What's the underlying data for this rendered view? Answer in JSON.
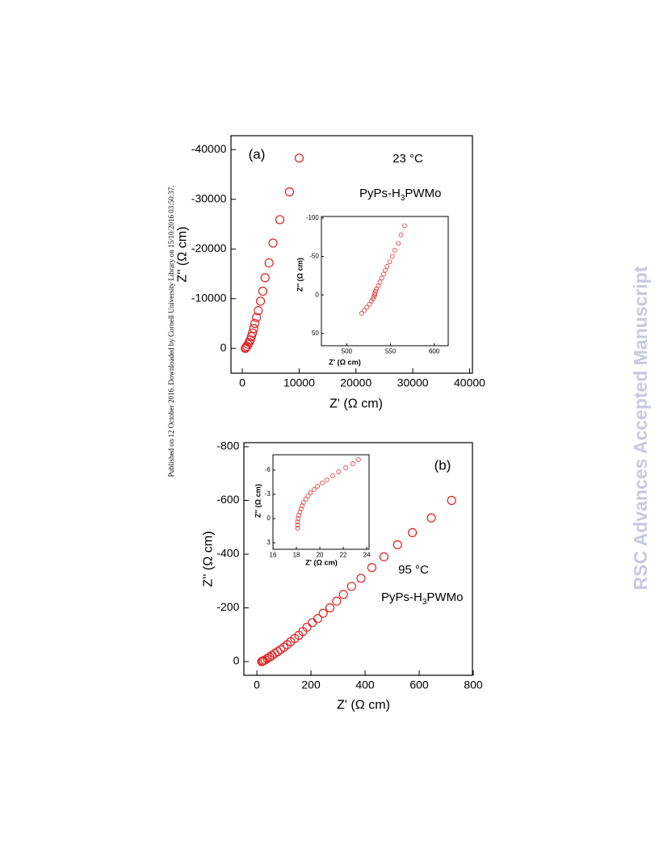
{
  "sidebar": {
    "left": "Published on 12 October 2016. Downloaded by Cornell University Library on 15/10/2016 03:50:37.",
    "right": "RSC Advances Accepted Manuscript"
  },
  "chart_data": [
    {
      "type": "scatter",
      "color": "#e02020",
      "xlabel": "Z' (Ω cm)",
      "ylabel": "Z'' (Ω cm)",
      "annotations": [
        "(a)",
        "23 °C"
      ],
      "label_parts": [
        "PyPs-H",
        "3",
        "PWMo"
      ],
      "xlim": [
        -2000,
        40500
      ],
      "xticks": [
        0,
        10000,
        20000,
        30000,
        40000
      ],
      "ylim": [
        5000,
        -42800
      ],
      "yticks": [
        0,
        -10000,
        -20000,
        -30000,
        -40000
      ],
      "x": [
        10000,
        8300,
        6600,
        5400,
        4700,
        4000,
        3600,
        3200,
        2800,
        2500,
        2200,
        2000,
        1800,
        1600,
        1400,
        1200,
        1000,
        800,
        600,
        530
      ],
      "values": [
        -38300,
        -31500,
        -25900,
        -21200,
        -17200,
        -14200,
        -11500,
        -9500,
        -7600,
        -6200,
        -5000,
        -4000,
        -3100,
        -2400,
        -1700,
        -1200,
        -800,
        -400,
        -150,
        0
      ]
    },
    {
      "type": "scatter",
      "color": "#e02020",
      "xlabel": "Z' (Ω cm)",
      "ylabel": "Z'' (Ω cm)",
      "xlim": [
        471,
        616
      ],
      "xticks": [
        500,
        550,
        600
      ],
      "ylim": [
        66,
        -102
      ],
      "yticks": [
        50,
        0,
        -50,
        -100
      ],
      "x": [
        517,
        520,
        523,
        526,
        528,
        530,
        531,
        532,
        532,
        533,
        534,
        536,
        538,
        540,
        542,
        544,
        546,
        549,
        552,
        555,
        559,
        562,
        566
      ],
      "values": [
        24,
        20,
        16,
        12,
        8,
        5,
        2,
        0,
        -2,
        -5,
        -8,
        -12,
        -17,
        -22,
        -27,
        -32,
        -37,
        -43,
        -50,
        -58,
        -67,
        -78,
        -90
      ]
    },
    {
      "type": "scatter",
      "color": "#e02020",
      "xlabel": "Z' (Ω cm)",
      "ylabel": "Z'' (Ω cm)",
      "annotations": [
        "(b)",
        "95 °C"
      ],
      "label_parts": [
        "PyPs-H",
        "3",
        "PWMo"
      ],
      "xlim": [
        -48,
        797
      ],
      "xticks": [
        0,
        200,
        400,
        600,
        800
      ],
      "ylim": [
        51,
        -815
      ],
      "yticks": [
        0,
        -200,
        -400,
        -600,
        -800
      ],
      "x": [
        720,
        645,
        575,
        520,
        470,
        425,
        385,
        350,
        320,
        295,
        270,
        245,
        225,
        205,
        185,
        170,
        155,
        140,
        125,
        112,
        100,
        88,
        77,
        66,
        56,
        47,
        38,
        30,
        24,
        20,
        18
      ],
      "values": [
        -600,
        -535,
        -480,
        -435,
        -390,
        -350,
        -310,
        -280,
        -250,
        -225,
        -200,
        -180,
        -160,
        -145,
        -128,
        -112,
        -98,
        -86,
        -74,
        -63,
        -53,
        -45,
        -37,
        -30,
        -23,
        -17,
        -11,
        -6,
        -3,
        -1,
        0
      ]
    },
    {
      "type": "scatter",
      "color": "#e02020",
      "xlabel": "Z' (Ω cm)",
      "ylabel": "Z'' (Ω cm)",
      "xlim": [
        16,
        24.2
      ],
      "xticks": [
        16,
        18,
        20,
        22,
        24
      ],
      "ylim": [
        3.8,
        -7.9
      ],
      "yticks": [
        3,
        0,
        -3,
        -6
      ],
      "x": [
        18.1,
        18.1,
        18.1,
        18.15,
        18.2,
        18.3,
        18.4,
        18.5,
        18.6,
        18.8,
        19,
        19.2,
        19.5,
        19.8,
        20.2,
        20.6,
        21.1,
        21.6,
        22.2,
        22.8,
        23.3
      ],
      "values": [
        1.2,
        0.8,
        0.4,
        0,
        -0.4,
        -0.8,
        -1.2,
        -1.6,
        -2,
        -2.4,
        -2.8,
        -3.2,
        -3.6,
        -4,
        -4.4,
        -4.8,
        -5.3,
        -5.8,
        -6.3,
        -6.8,
        -7.3
      ]
    }
  ]
}
